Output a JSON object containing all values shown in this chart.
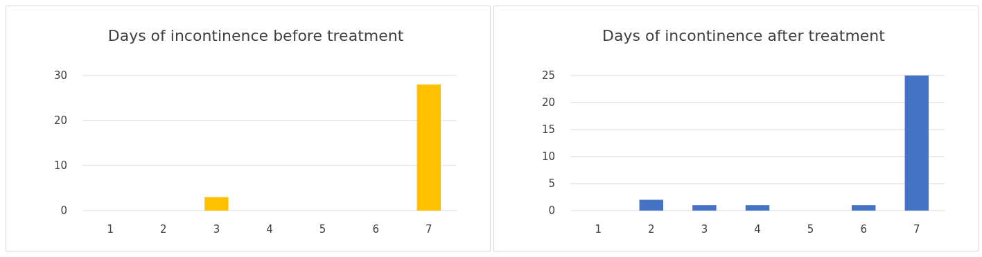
{
  "chart_data": [
    {
      "type": "bar",
      "title": "Days of incontinence before treatment",
      "categories": [
        "1",
        "2",
        "3",
        "4",
        "5",
        "6",
        "7"
      ],
      "values": [
        0,
        0,
        3,
        0,
        0,
        0,
        28
      ],
      "color": "#ffc000",
      "ylim": [
        0,
        30
      ],
      "yticks": [
        0,
        10,
        20,
        30
      ],
      "grid": "y"
    },
    {
      "type": "bar",
      "title": "Days of incontinence after treatment",
      "categories": [
        "1",
        "2",
        "3",
        "4",
        "5",
        "6",
        "7"
      ],
      "values": [
        0,
        2,
        1,
        1,
        0,
        1,
        25
      ],
      "color": "#4472c4",
      "ylim": [
        0,
        25
      ],
      "yticks": [
        0,
        5,
        10,
        15,
        20,
        25
      ],
      "grid": "y"
    }
  ]
}
